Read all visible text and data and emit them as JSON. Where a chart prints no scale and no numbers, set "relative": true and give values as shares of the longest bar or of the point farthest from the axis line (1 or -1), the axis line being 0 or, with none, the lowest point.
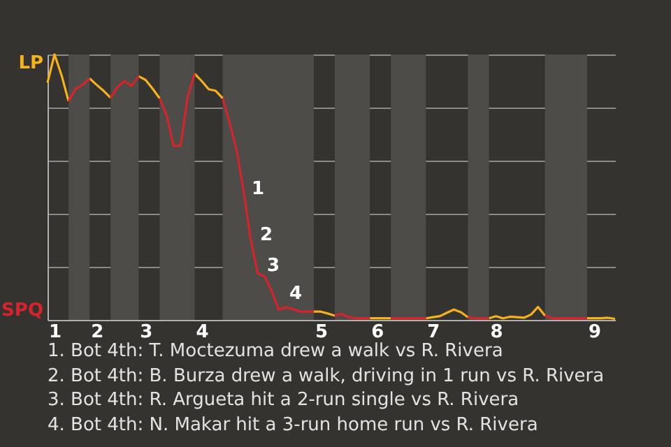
{
  "chart_data": {
    "type": "line",
    "relative": true,
    "categories": [
      null,
      "1",
      null,
      null,
      null,
      null,
      null,
      "2",
      null,
      null,
      null,
      null,
      null,
      null,
      "3",
      null,
      null,
      null,
      null,
      null,
      null,
      null,
      "4",
      null,
      null,
      null,
      null,
      null,
      null,
      null,
      null,
      null,
      null,
      null,
      null,
      null,
      null,
      null,
      null,
      "5",
      null,
      null,
      null,
      null,
      null,
      null,
      null,
      "6",
      null,
      null,
      null,
      null,
      null,
      null,
      null,
      "7",
      null,
      null,
      null,
      null,
      null,
      null,
      null,
      null,
      "8",
      null,
      null,
      null,
      null,
      null,
      null,
      null,
      null,
      null,
      null,
      null,
      null,
      null,
      "9",
      null,
      null,
      null
    ],
    "series": [
      {
        "name": "LP",
        "color": "#f5b21b",
        "values": [
          0.894,
          1,
          0.922,
          0.824,
          null,
          null,
          0.91,
          0.886,
          0.863,
          0.837,
          null,
          null,
          null,
          0.918,
          0.904,
          0.871,
          0.835,
          null,
          null,
          null,
          null,
          0.927,
          0.9,
          0.869,
          0.863,
          0.835,
          null,
          null,
          null,
          null,
          null,
          null,
          null,
          null,
          null,
          null,
          null,
          null,
          0.031,
          0.031,
          0.024,
          0.016,
          null,
          null,
          null,
          null,
          0.006,
          0.006,
          0.006,
          0.006,
          null,
          null,
          null,
          null,
          0.006,
          0.01,
          0.014,
          0.027,
          0.039,
          0.029,
          0.01,
          null,
          null,
          0.006,
          0.014,
          0.006,
          0.012,
          0.01,
          0.008,
          0.02,
          0.049,
          0.016,
          null,
          null,
          null,
          null,
          null,
          0.006,
          0.006,
          0.006,
          0.008,
          0.004
        ]
      },
      {
        "name": "SPQ",
        "color": "#d7232b",
        "values": [
          null,
          null,
          null,
          0.824,
          0.871,
          0.886,
          0.91,
          null,
          null,
          0.837,
          0.878,
          0.9,
          0.882,
          0.918,
          null,
          null,
          0.835,
          0.771,
          0.655,
          0.657,
          0.841,
          0.927,
          null,
          null,
          null,
          0.835,
          0.741,
          0.639,
          0.482,
          0.302,
          0.176,
          0.163,
          0.108,
          0.039,
          0.047,
          0.041,
          0.031,
          0.031,
          0.031,
          null,
          null,
          0.016,
          0.022,
          0.01,
          0.006,
          0.006,
          0.006,
          null,
          null,
          0.006,
          0.006,
          0.006,
          0.006,
          0.006,
          0.006,
          null,
          null,
          null,
          null,
          null,
          0.01,
          0.006,
          0.006,
          0.006,
          null,
          null,
          null,
          null,
          null,
          null,
          null,
          0.016,
          0.006,
          0.006,
          0.006,
          0.006,
          0.006,
          0.006,
          null,
          null,
          null,
          null
        ]
      }
    ],
    "grid": "y",
    "annotations": [
      "1",
      "2",
      "3",
      "4",
      "1. Bot 4th: T. Moctezuma drew a walk vs R. Rivera",
      "2. Bot 4th: B. Burza drew a walk, driving in 1 run vs R. Rivera",
      "3. Bot 4th: R. Argueta hit a 2-run single vs R. Rivera",
      "4. Bot 4th: N. Makar hit a 3-run home run vs R. Rivera"
    ]
  }
}
